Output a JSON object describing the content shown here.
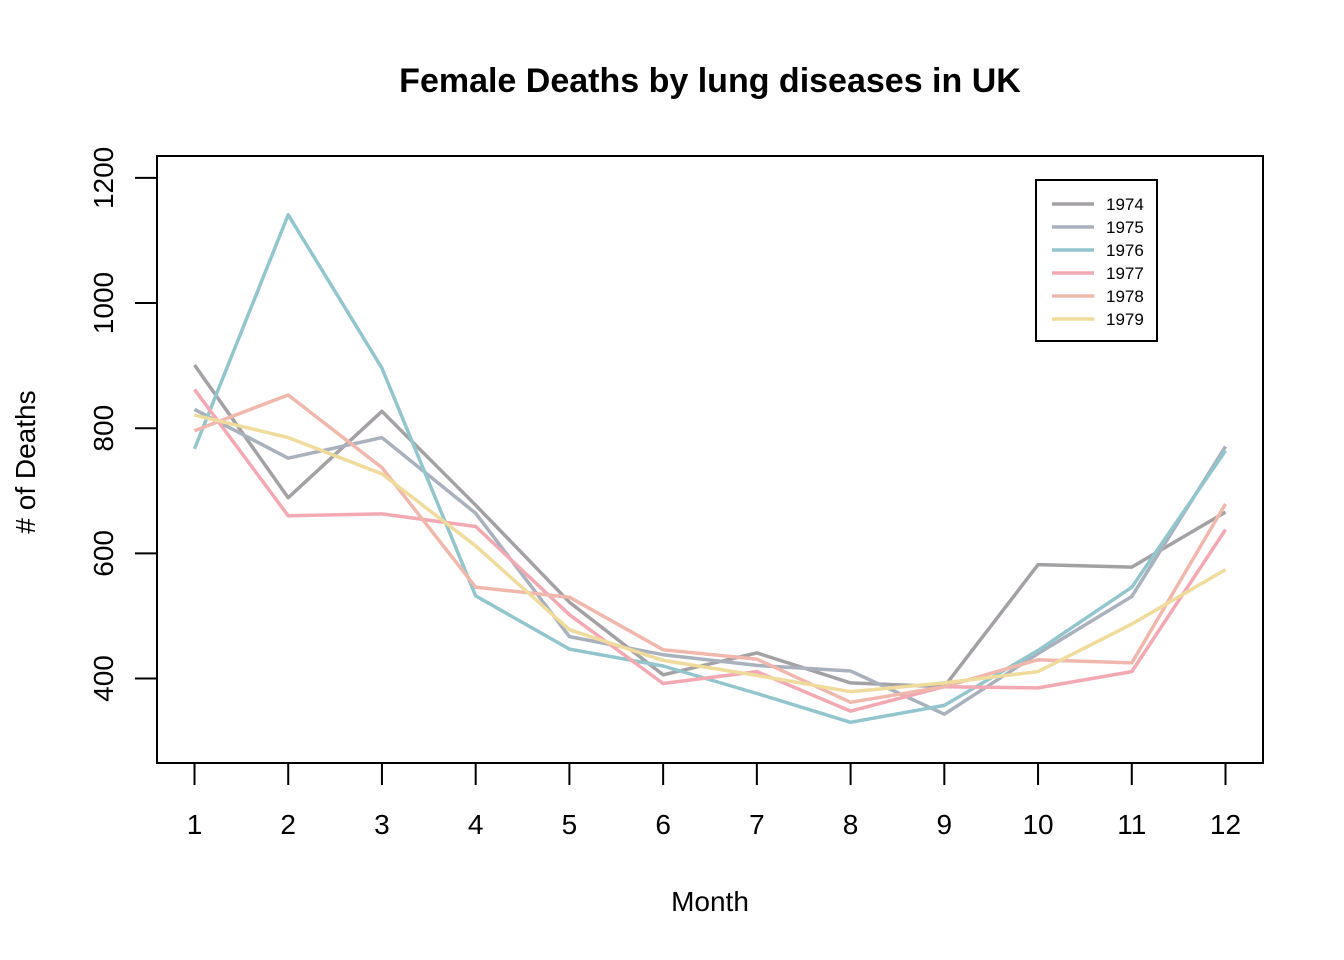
{
  "chart_data": {
    "type": "line",
    "title": "Female Deaths by lung diseases in UK",
    "xlabel": "Month",
    "ylabel": "# of Deaths",
    "x": [
      1,
      2,
      3,
      4,
      5,
      6,
      7,
      8,
      9,
      10,
      11,
      12
    ],
    "xlim": [
      0.6,
      12.4
    ],
    "ylim": [
      265,
      1235
    ],
    "yticks": [
      400,
      600,
      800,
      1000,
      1200
    ],
    "grid": false,
    "legend_position": "top-right",
    "series": [
      {
        "name": "1974",
        "color": "#a3a1a4",
        "values": [
          901,
          689,
          827,
          677,
          522,
          406,
          441,
          393,
          387,
          582,
          578,
          666
        ]
      },
      {
        "name": "1975",
        "color": "#a9b1bd",
        "values": [
          830,
          752,
          785,
          664,
          467,
          438,
          421,
          412,
          343,
          440,
          531,
          771
        ]
      },
      {
        "name": "1976",
        "color": "#93c6cc",
        "values": [
          767,
          1141,
          896,
          532,
          447,
          420,
          376,
          330,
          357,
          445,
          546,
          764
        ]
      },
      {
        "name": "1977",
        "color": "#f2a9b3",
        "values": [
          862,
          660,
          663,
          643,
          502,
          392,
          411,
          348,
          387,
          385,
          411,
          638
        ]
      },
      {
        "name": "1978",
        "color": "#f0b7ad",
        "values": [
          796,
          853,
          737,
          546,
          530,
          446,
          431,
          362,
          387,
          430,
          425,
          679
        ]
      },
      {
        "name": "1979",
        "color": "#efdb9c",
        "values": [
          821,
          785,
          727,
          612,
          478,
          429,
          405,
          379,
          393,
          411,
          487,
          574
        ]
      }
    ]
  }
}
